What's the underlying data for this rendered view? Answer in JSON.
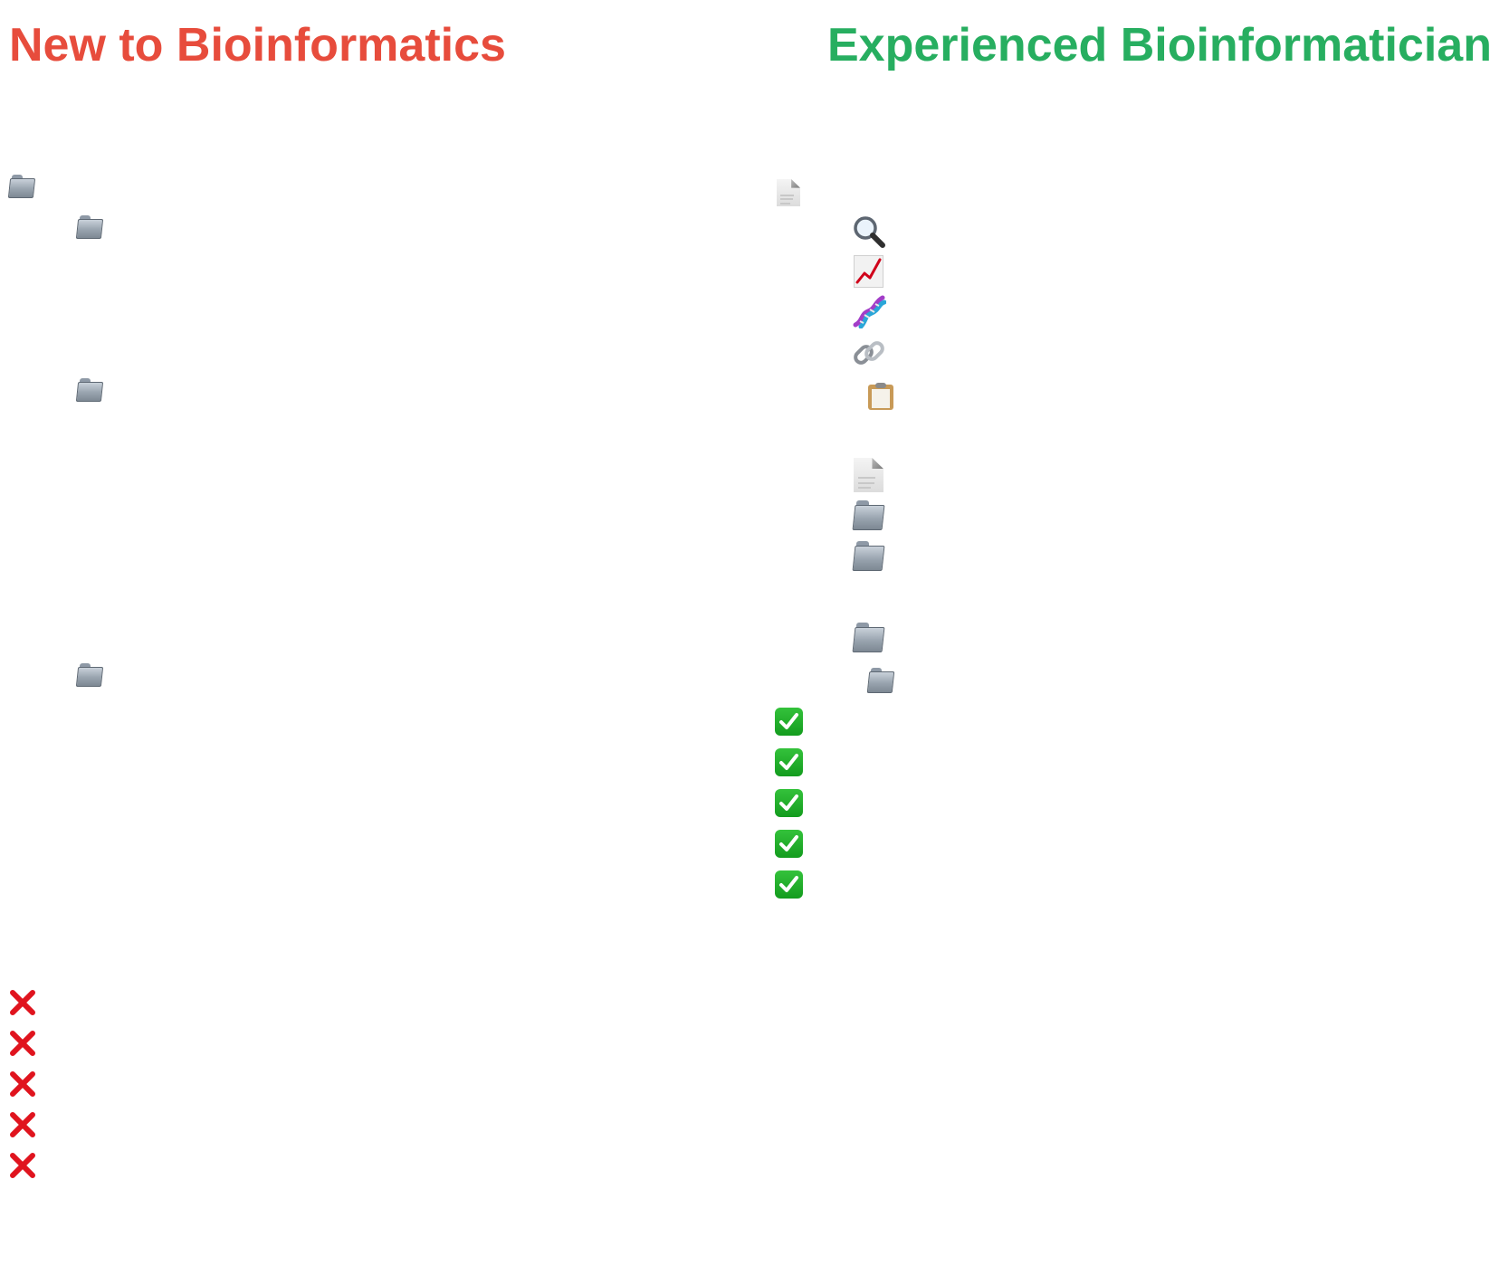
{
  "left_column": {
    "title": "New to Bioinformatics",
    "title_color": "#e74c3c",
    "tree_icons": [
      "folder-icon",
      "folder-icon",
      "folder-icon",
      "folder-icon"
    ],
    "issue_icons": [
      "cross-mark-icon",
      "cross-mark-icon",
      "cross-mark-icon",
      "cross-mark-icon",
      "cross-mark-icon"
    ]
  },
  "right_column": {
    "title": "Experienced Bioinformatician",
    "title_color": "#27ae60",
    "tree_icons": [
      "document-icon",
      "magnifying-glass-icon",
      "chart-increasing-icon",
      "dna-icon",
      "link-icon",
      "clipboard-icon",
      "document-icon",
      "folder-icon",
      "folder-icon",
      "folder-icon",
      "folder-icon"
    ],
    "good_practice_icons": [
      "check-mark-icon",
      "check-mark-icon",
      "check-mark-icon",
      "check-mark-icon",
      "check-mark-icon"
    ]
  },
  "colors": {
    "cross": "#e0141e",
    "check": "#1fae2a"
  }
}
